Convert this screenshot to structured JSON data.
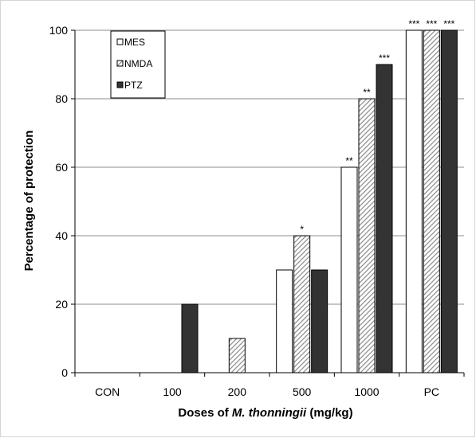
{
  "chart_data": {
    "type": "bar",
    "title": "",
    "ylabel": "Percentage of protection",
    "xlabel_parts": {
      "prefix": "Doses of ",
      "italic": "M. thonningii",
      "suffix": " (mg/kg)"
    },
    "categories": [
      "CON",
      "100",
      "200",
      "500",
      "1000",
      "PC"
    ],
    "ylim": [
      0,
      100
    ],
    "yticks": [
      0,
      20,
      40,
      60,
      80,
      100
    ],
    "grid": true,
    "legend_position": "top-left",
    "series": [
      {
        "name": "MES",
        "values": [
          0,
          0,
          0,
          30,
          60,
          100
        ],
        "fill": "#ffffff",
        "pattern": "none",
        "significance": [
          "",
          "",
          "",
          "",
          "**",
          "***"
        ]
      },
      {
        "name": "NMDA",
        "values": [
          0,
          0,
          10,
          40,
          80,
          100
        ],
        "fill": "#ffffff",
        "pattern": "diagonal-hatch",
        "significance": [
          "",
          "",
          "",
          "*",
          "**",
          "***"
        ]
      },
      {
        "name": "PTZ",
        "values": [
          0,
          20,
          0,
          30,
          90,
          100
        ],
        "fill": "#333333",
        "pattern": "none",
        "significance": [
          "",
          "",
          "",
          "",
          "***",
          "***"
        ]
      }
    ]
  }
}
